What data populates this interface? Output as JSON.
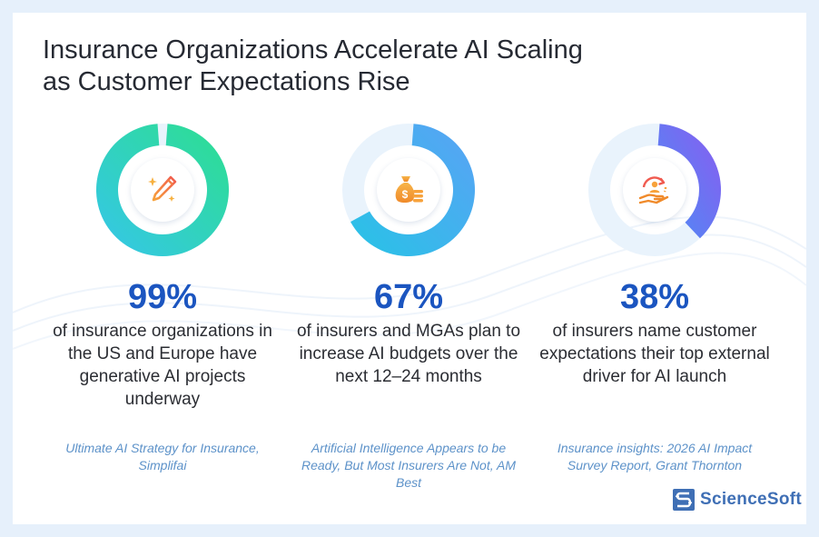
{
  "title": {
    "line1": "Insurance Organizations Accelerate AI Scaling",
    "line2": "as Customer Expectations Rise"
  },
  "chart_data": [
    {
      "type": "pie",
      "value": 99,
      "value_label": "99%",
      "description": "of insurance organizations in the US and Europe have generative AI projects underway",
      "source": "Ultimate AI Strategy for Insurance, Simplifai",
      "icon": "pencil-sparkles-icon",
      "colors": {
        "from": "#2ddf8e",
        "to": "#35c6ea",
        "track": "#e9f3fc"
      }
    },
    {
      "type": "pie",
      "value": 67,
      "value_label": "67%",
      "description": "of insurers and MGAs plan to increase AI budgets over the next 12–24 months",
      "source": "Artificial Intelligence Appears to be Ready, But Most Insurers Are Not, AM Best",
      "icon": "money-bag-coins-icon",
      "colors": {
        "from": "#5aa2f5",
        "to": "#27c3e6",
        "track": "#e9f3fc"
      }
    },
    {
      "type": "pie",
      "value": 38,
      "value_label": "38%",
      "description": "of insurers name customer expectations their top external driver for AI launch",
      "source": "Insurance insights: 2026 AI Impact Survey Report, Grant Thornton",
      "icon": "hand-person-cycle-icon",
      "colors": {
        "from": "#8a5cf0",
        "to": "#4a8ef5",
        "track": "#e9f3fc"
      }
    }
  ],
  "logo": {
    "text": "ScienceSoft"
  }
}
